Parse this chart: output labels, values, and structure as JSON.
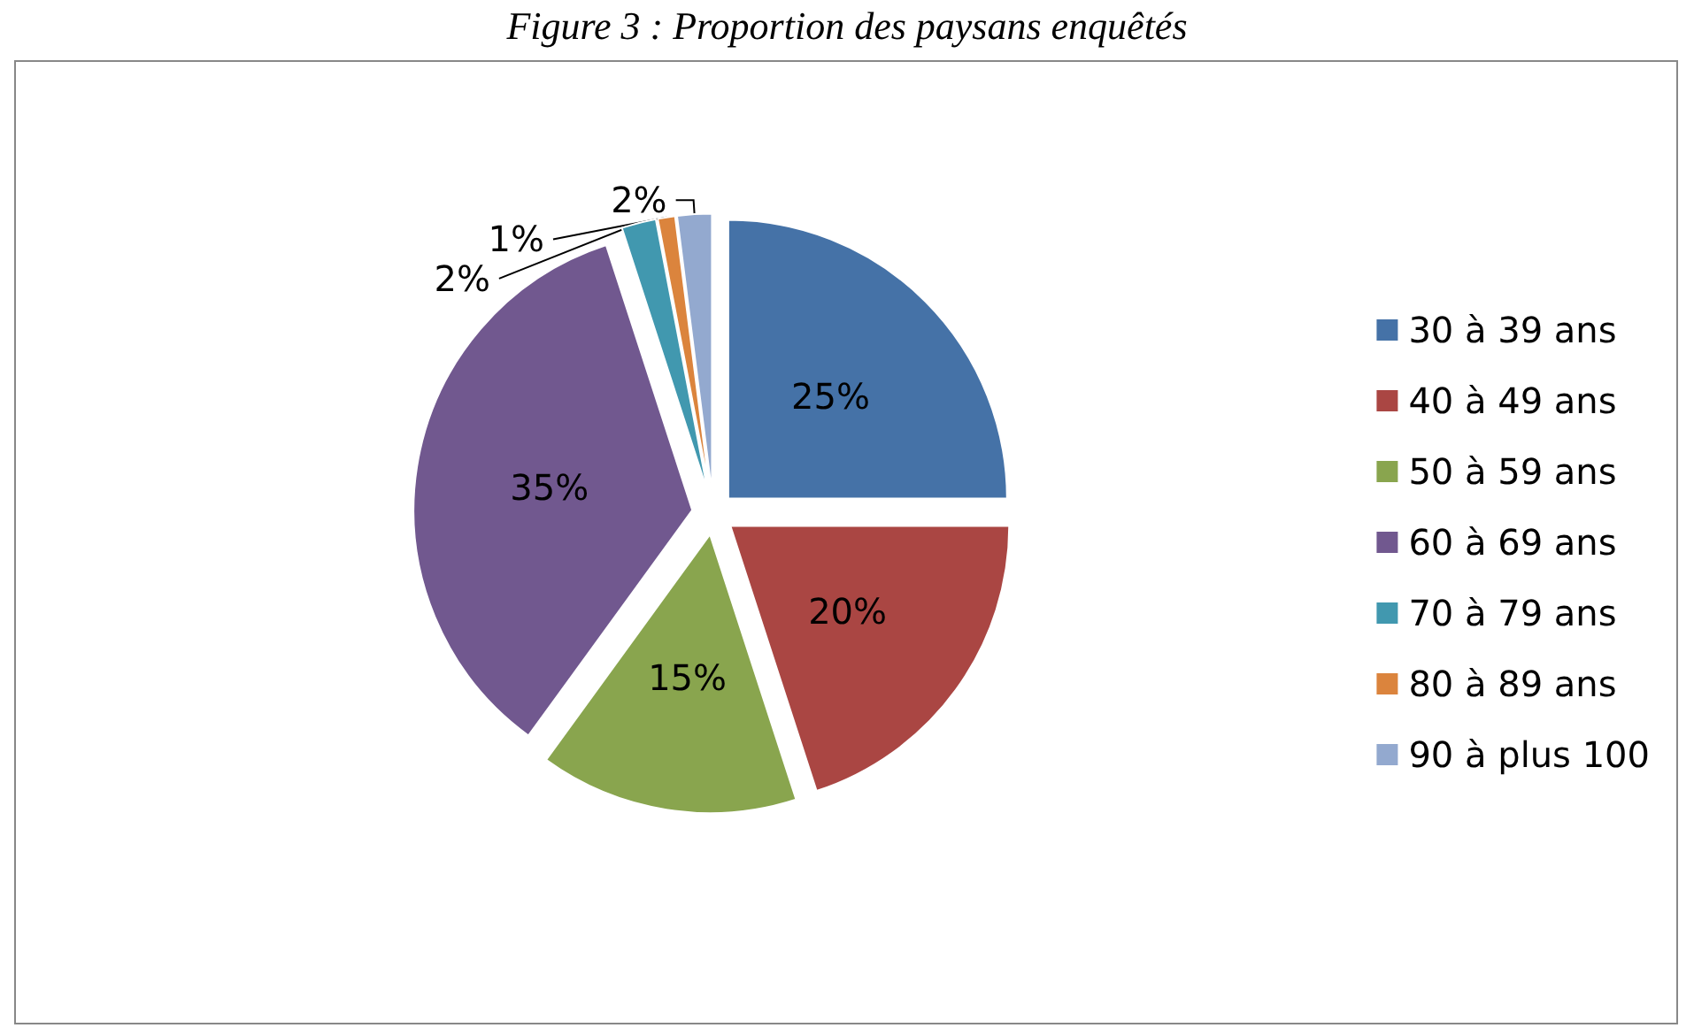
{
  "chart_data": {
    "type": "pie",
    "title": "Figure 3 : Proportion des paysans enquêtés",
    "categories": [
      "30 à 39 ans",
      "40 à 49 ans",
      "50 à 59 ans",
      "60 à 69 ans",
      "70 à 79 ans",
      "80 à 89 ans",
      "90 à plus 100"
    ],
    "values": [
      25,
      20,
      15,
      35,
      2,
      1,
      2
    ],
    "colors": [
      "#4572a7",
      "#aa4643",
      "#89a54e",
      "#71588f",
      "#4198af",
      "#db843d",
      "#93a9cf"
    ],
    "value_labels": [
      "25%",
      "20%",
      "15%",
      "35%",
      "2%",
      "1%",
      "2%"
    ],
    "legend": "right"
  }
}
